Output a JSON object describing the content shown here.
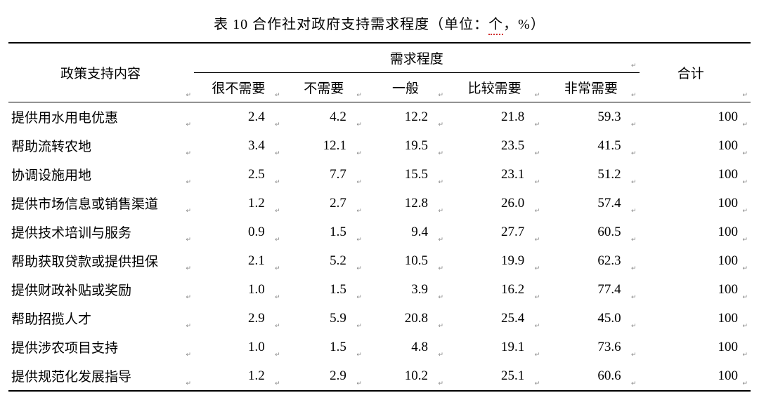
{
  "table": {
    "caption_prefix": "表 10 合作社对政府支持需求程度（单位：",
    "caption_squiggle": "个",
    "caption_suffix": "，%）",
    "header": {
      "policy": "政策支持内容",
      "group": "需求程度",
      "levels": [
        "很不需要",
        "不需要",
        "一般",
        "比较需要",
        "非常需要"
      ],
      "total": "合计"
    },
    "rows": [
      {
        "label": "提供用水用电优惠",
        "vals": [
          "2.4",
          "4.2",
          "12.2",
          "21.8",
          "59.3"
        ],
        "total": "100"
      },
      {
        "label": "帮助流转农地",
        "vals": [
          "3.4",
          "12.1",
          "19.5",
          "23.5",
          "41.5"
        ],
        "total": "100"
      },
      {
        "label": "协调设施用地",
        "vals": [
          "2.5",
          "7.7",
          "15.5",
          "23.1",
          "51.2"
        ],
        "total": "100"
      },
      {
        "label": "提供市场信息或销售渠道",
        "vals": [
          "1.2",
          "2.7",
          "12.8",
          "26.0",
          "57.4"
        ],
        "total": "100"
      },
      {
        "label": "提供技术培训与服务",
        "vals": [
          "0.9",
          "1.5",
          "9.4",
          "27.7",
          "60.5"
        ],
        "total": "100"
      },
      {
        "label": "帮助获取贷款或提供担保",
        "vals": [
          "2.1",
          "5.2",
          "10.5",
          "19.9",
          "62.3"
        ],
        "total": "100"
      },
      {
        "label": "提供财政补贴或奖励",
        "vals": [
          "1.0",
          "1.5",
          "3.9",
          "16.2",
          "77.4"
        ],
        "total": "100"
      },
      {
        "label": "帮助招揽人才",
        "vals": [
          "2.9",
          "5.9",
          "20.8",
          "25.4",
          "45.0"
        ],
        "total": "100"
      },
      {
        "label": "提供涉农项目支持",
        "vals": [
          "1.0",
          "1.5",
          "4.8",
          "19.1",
          "73.6"
        ],
        "total": "100"
      },
      {
        "label": "提供规范化发展指导",
        "vals": [
          "1.2",
          "2.9",
          "10.2",
          "25.1",
          "60.6"
        ],
        "total": "100"
      }
    ],
    "cell_marker": "↵",
    "marker_color": "#888888",
    "border_color": "#000000",
    "background_color": "#ffffff"
  }
}
